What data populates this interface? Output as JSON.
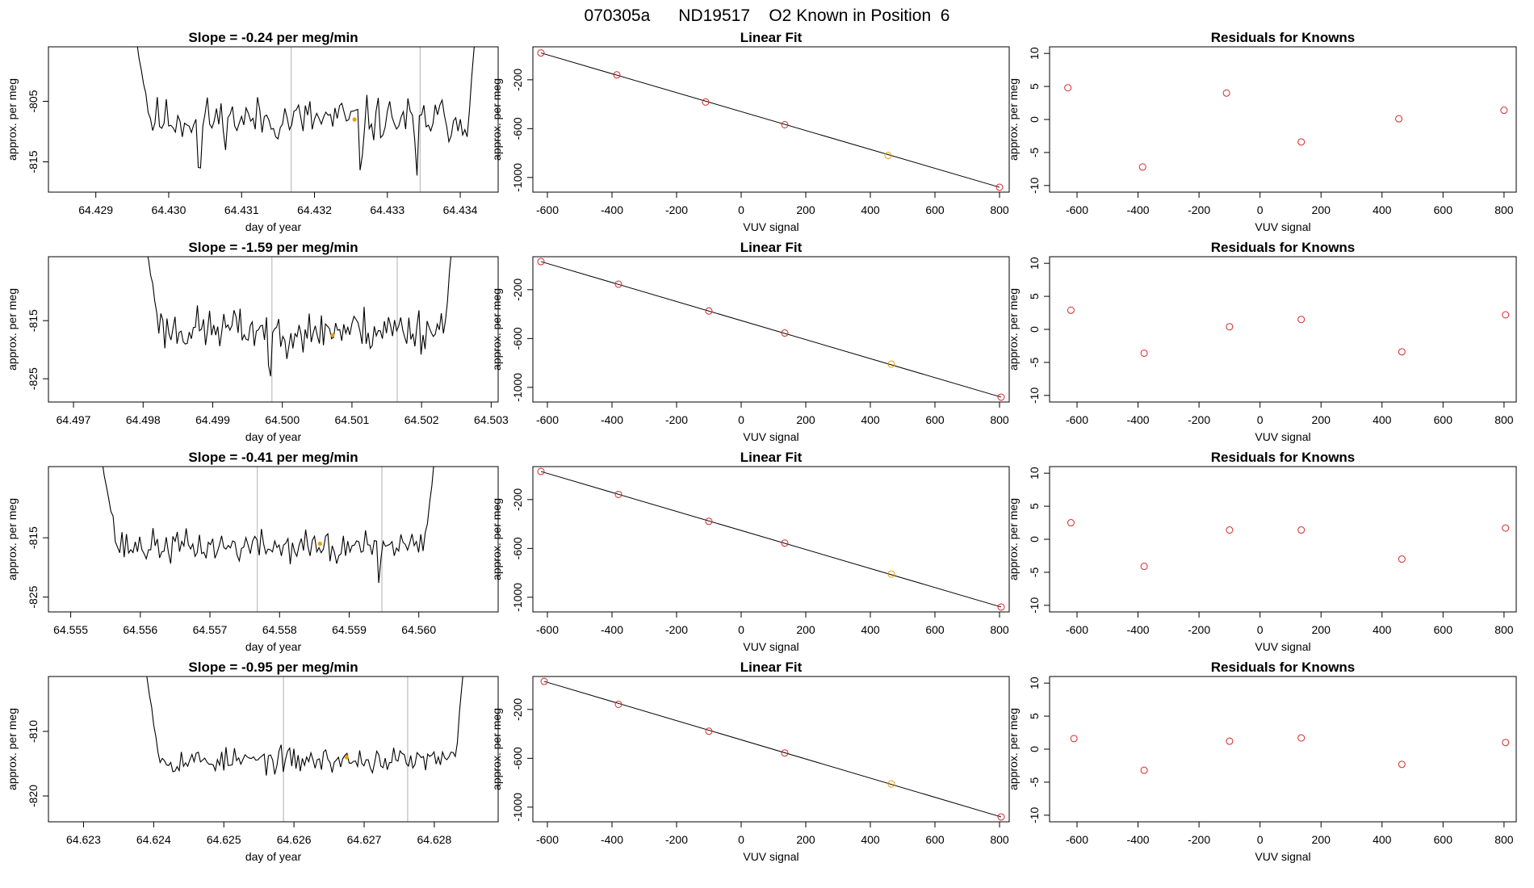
{
  "figure_title": "070305a      ND19517    O2 Known in Position  6",
  "colors": {
    "axis": "#000000",
    "series": "#000000",
    "vline": "#bdbdbd",
    "point_red": "#d62728",
    "point_orange": "#e8a000"
  },
  "chart_data": [
    {
      "type": "line",
      "panel": "timeseries",
      "row": 1,
      "title": "Slope =  -0.24  per meg/min",
      "xlabel": "day of year",
      "ylabel": "approx. per meg",
      "xlim": [
        64.42835,
        64.43452
      ],
      "ylim": [
        -820,
        -796
      ],
      "xticks": [
        "64.429",
        "64.430",
        "64.431",
        "64.432",
        "64.433",
        "64.434"
      ],
      "yticks": [
        "-805",
        "-815"
      ],
      "vlines": [
        64.43168,
        64.43345
      ],
      "highlight": {
        "x": 64.43255,
        "y": -808
      },
      "data_range": [
        64.42953,
        64.43422
      ],
      "baseline": -808,
      "noise": 3.2,
      "seed": 11,
      "dips": [
        {
          "x": 64.43042,
          "depth": 15
        },
        {
          "x": 64.43263,
          "depth": 11
        },
        {
          "x": 64.4334,
          "depth": 14
        }
      ],
      "start_y": -793,
      "end_y": -793
    },
    {
      "type": "line",
      "panel": "linfit",
      "row": 1,
      "title": "Linear Fit",
      "xlabel": "VUV signal",
      "ylabel": "approx. per meg",
      "xlim": [
        -645,
        830
      ],
      "ylim": [
        -1120,
        70
      ],
      "xticks": [
        "-600",
        "-400",
        "-200",
        "0",
        "200",
        "400",
        "600",
        "800"
      ],
      "yticks": [
        "-200",
        "-600",
        "-1000"
      ],
      "fit_line": {
        "x": [
          -620,
          800
        ],
        "y": [
          20,
          -1080
        ]
      },
      "points": {
        "x": [
          -620,
          -385,
          -110,
          135,
          455,
          800
        ],
        "y": [
          20,
          -160,
          -382,
          -568,
          -820,
          -1080
        ],
        "highlight_index": 4
      }
    },
    {
      "type": "scatter",
      "panel": "residuals",
      "row": 1,
      "title": "Residuals for Knowns",
      "xlabel": "VUV signal",
      "ylabel": "approx. per meg",
      "xlim": [
        -690,
        840
      ],
      "ylim": [
        -11,
        11
      ],
      "xticks": [
        "-600",
        "-400",
        "-200",
        "0",
        "200",
        "400",
        "600",
        "800"
      ],
      "yticks": [
        "-10",
        "-5",
        "0",
        "5",
        "10"
      ],
      "points": {
        "x": [
          -630,
          -385,
          -110,
          135,
          455,
          800
        ],
        "y": [
          4.8,
          -7.2,
          4.0,
          -3.4,
          0.1,
          1.4
        ]
      }
    },
    {
      "type": "line",
      "panel": "timeseries",
      "row": 2,
      "title": "Slope =  -1.59  per meg/min",
      "xlabel": "day of year",
      "ylabel": "approx. per meg",
      "xlim": [
        64.49664,
        64.5031
      ],
      "ylim": [
        -829,
        -804
      ],
      "xticks": [
        "64.497",
        "64.498",
        "64.499",
        "64.500",
        "64.501",
        "64.502",
        "64.503"
      ],
      "yticks": [
        "-815",
        "-825"
      ],
      "vlines": [
        64.49985,
        64.50165
      ],
      "highlight": {
        "x": 64.50072,
        "y": -817.5
      },
      "data_range": [
        64.49805,
        64.50243
      ],
      "baseline": -816.5,
      "noise": 3.4,
      "seed": 23,
      "dips": [
        {
          "x": 64.49983,
          "depth": 14
        },
        {
          "x": 64.50042,
          "depth": 6
        }
      ],
      "start_y": -803,
      "end_y": -803
    },
    {
      "type": "line",
      "panel": "linfit",
      "row": 2,
      "title": "Linear Fit",
      "xlabel": "VUV signal",
      "ylabel": "approx. per meg",
      "xlim": [
        -645,
        830
      ],
      "ylim": [
        -1120,
        70
      ],
      "xticks": [
        "-600",
        "-400",
        "-200",
        "0",
        "200",
        "400",
        "600",
        "800"
      ],
      "yticks": [
        "-200",
        "-600",
        "-1000"
      ],
      "fit_line": {
        "x": [
          -620,
          805
        ],
        "y": [
          30,
          -1080
        ]
      },
      "points": {
        "x": [
          -620,
          -380,
          -100,
          135,
          465,
          805
        ],
        "y": [
          30,
          -155,
          -375,
          -555,
          -810,
          -1080
        ],
        "highlight_index": 4
      }
    },
    {
      "type": "scatter",
      "panel": "residuals",
      "row": 2,
      "title": "Residuals for Knowns",
      "xlabel": "VUV signal",
      "ylabel": "approx. per meg",
      "xlim": [
        -690,
        840
      ],
      "ylim": [
        -11,
        11
      ],
      "xticks": [
        "-600",
        "-400",
        "-200",
        "0",
        "200",
        "400",
        "600",
        "800"
      ],
      "yticks": [
        "-10",
        "-5",
        "0",
        "5",
        "10"
      ],
      "points": {
        "x": [
          -620,
          -380,
          -100,
          135,
          465,
          805
        ],
        "y": [
          2.9,
          -3.6,
          0.4,
          1.5,
          -3.4,
          2.2
        ]
      }
    },
    {
      "type": "line",
      "panel": "timeseries",
      "row": 3,
      "title": "Slope =  -0.41  per meg/min",
      "xlabel": "day of year",
      "ylabel": "approx. per meg",
      "xlim": [
        64.55468,
        64.56114
      ],
      "ylim": [
        -827.5,
        -803
      ],
      "xticks": [
        "64.555",
        "64.556",
        "64.557",
        "64.558",
        "64.559",
        "64.560"
      ],
      "yticks": [
        "-815",
        "-825"
      ],
      "vlines": [
        64.55768,
        64.55947
      ],
      "highlight": {
        "x": 64.55858,
        "y": -816
      },
      "data_range": [
        64.55545,
        64.56022
      ],
      "baseline": -816.5,
      "noise": 2.4,
      "seed": 37,
      "dips": [
        {
          "x": 64.55943,
          "depth": 10
        },
        {
          "x": 64.55882,
          "depth": 4
        }
      ],
      "start_y": -802,
      "end_y": -802
    },
    {
      "type": "line",
      "panel": "linfit",
      "row": 3,
      "title": "Linear Fit",
      "xlabel": "VUV signal",
      "ylabel": "approx. per meg",
      "xlim": [
        -645,
        830
      ],
      "ylim": [
        -1120,
        70
      ],
      "xticks": [
        "-600",
        "-400",
        "-200",
        "0",
        "200",
        "400",
        "600",
        "800"
      ],
      "yticks": [
        "-200",
        "-600",
        "-1000"
      ],
      "fit_line": {
        "x": [
          -620,
          805
        ],
        "y": [
          30,
          -1080
        ]
      },
      "points": {
        "x": [
          -620,
          -380,
          -100,
          135,
          465,
          805
        ],
        "y": [
          30,
          -158,
          -378,
          -556,
          -810,
          -1080
        ],
        "highlight_index": 4
      }
    },
    {
      "type": "scatter",
      "panel": "residuals",
      "row": 3,
      "title": "Residuals for Knowns",
      "xlabel": "VUV signal",
      "ylabel": "approx. per meg",
      "xlim": [
        -690,
        840
      ],
      "ylim": [
        -11,
        11
      ],
      "xticks": [
        "-600",
        "-400",
        "-200",
        "0",
        "200",
        "400",
        "600",
        "800"
      ],
      "yticks": [
        "-10",
        "-5",
        "0",
        "5",
        "10"
      ],
      "points": {
        "x": [
          -620,
          -380,
          -100,
          135,
          465,
          805
        ],
        "y": [
          2.5,
          -4.1,
          1.4,
          1.4,
          -3.0,
          1.7
        ]
      }
    },
    {
      "type": "line",
      "panel": "timeseries",
      "row": 4,
      "title": "Slope =  -0.95  per meg/min",
      "xlabel": "day of year",
      "ylabel": "approx. per meg",
      "xlim": [
        64.6225,
        64.62891
      ],
      "ylim": [
        -824,
        -801.5
      ],
      "xticks": [
        "64.623",
        "64.624",
        "64.625",
        "64.626",
        "64.627",
        "64.628"
      ],
      "yticks": [
        "-810",
        "-820"
      ],
      "vlines": [
        64.62585,
        64.62762
      ],
      "highlight": {
        "x": 64.62675,
        "y": -814
      },
      "data_range": [
        64.62388,
        64.62842
      ],
      "baseline": -814.5,
      "noise": 1.7,
      "seed": 53,
      "dips": [],
      "start_y": -800,
      "end_y": -800
    },
    {
      "type": "line",
      "panel": "linfit",
      "row": 4,
      "title": "Linear Fit",
      "xlabel": "VUV signal",
      "ylabel": "approx. per meg",
      "xlim": [
        -645,
        830
      ],
      "ylim": [
        -1120,
        70
      ],
      "xticks": [
        "-600",
        "-400",
        "-200",
        "0",
        "200",
        "400",
        "600",
        "800"
      ],
      "yticks": [
        "-200",
        "-600",
        "-1000"
      ],
      "fit_line": {
        "x": [
          -610,
          805
        ],
        "y": [
          30,
          -1080
        ]
      },
      "points": {
        "x": [
          -610,
          -380,
          -100,
          135,
          465,
          805
        ],
        "y": [
          30,
          -158,
          -378,
          -556,
          -810,
          -1080
        ],
        "highlight_index": 4
      }
    },
    {
      "type": "scatter",
      "panel": "residuals",
      "row": 4,
      "title": "Residuals for Knowns",
      "xlabel": "VUV signal",
      "ylabel": "approx. per meg",
      "xlim": [
        -690,
        840
      ],
      "ylim": [
        -11,
        11
      ],
      "xticks": [
        "-600",
        "-400",
        "-200",
        "0",
        "200",
        "400",
        "600",
        "800"
      ],
      "yticks": [
        "-10",
        "-5",
        "0",
        "5",
        "10"
      ],
      "points": {
        "x": [
          -610,
          -380,
          -100,
          135,
          465,
          805
        ],
        "y": [
          1.6,
          -3.2,
          1.2,
          1.7,
          -2.3,
          1.0
        ]
      }
    }
  ]
}
